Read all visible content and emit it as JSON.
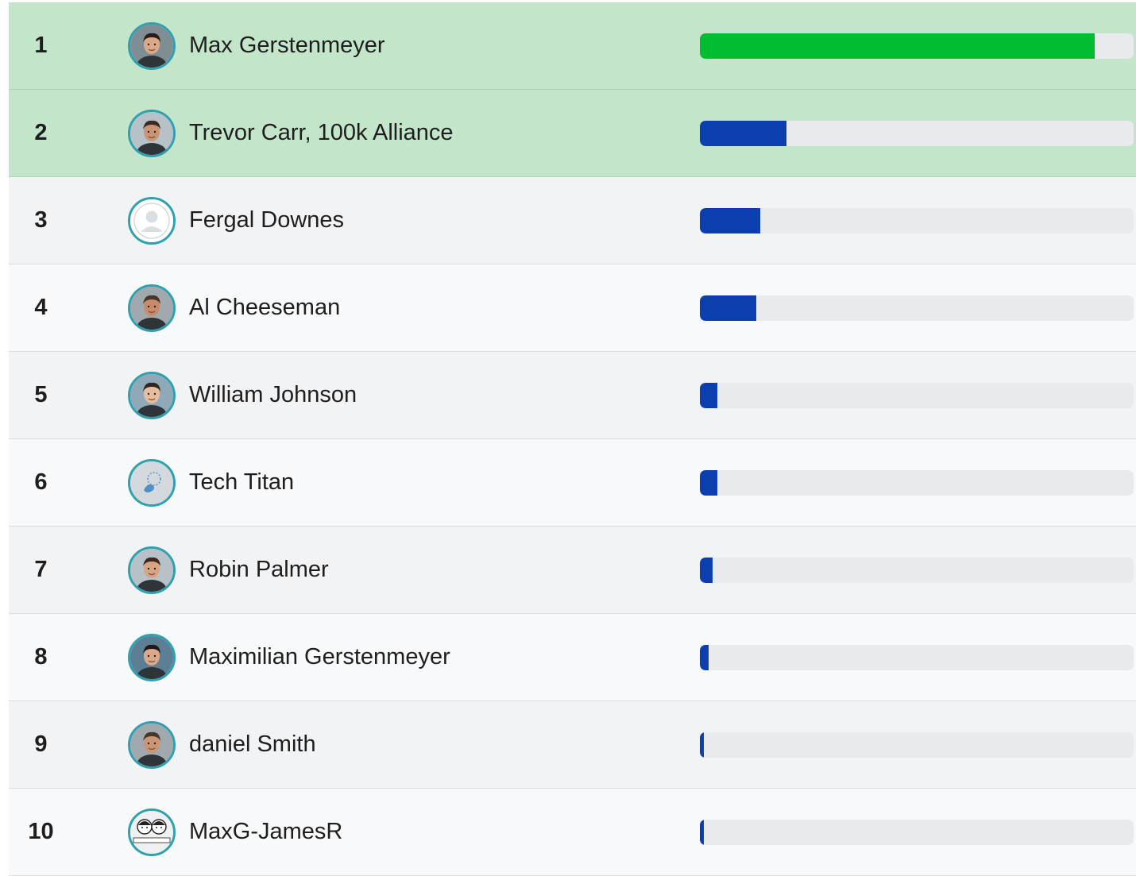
{
  "colors": {
    "first_place_bar": "#00bd32",
    "bar": "#0b3fb0",
    "highlight_row": "#c3e6cb",
    "avatar_ring": "#2fa0ad"
  },
  "leaderboard": {
    "rows": [
      {
        "rank": "1",
        "name": "Max Gerstenmeyer",
        "avatar_icon": "profile-photo",
        "progress": 0.91,
        "highlighted": true
      },
      {
        "rank": "2",
        "name": "Trevor Carr, 100k Alliance",
        "avatar_icon": "profile-photo",
        "progress": 0.2,
        "highlighted": true
      },
      {
        "rank": "3",
        "name": "Fergal Downes",
        "avatar_icon": "default-user-icon",
        "progress": 0.14,
        "highlighted": false
      },
      {
        "rank": "4",
        "name": "Al Cheeseman",
        "avatar_icon": "profile-photo",
        "progress": 0.13,
        "highlighted": false
      },
      {
        "rank": "5",
        "name": "William Johnson",
        "avatar_icon": "profile-photo",
        "progress": 0.04,
        "highlighted": false
      },
      {
        "rank": "6",
        "name": "Tech Titan",
        "avatar_icon": "logo-image",
        "progress": 0.04,
        "highlighted": false
      },
      {
        "rank": "7",
        "name": "Robin Palmer",
        "avatar_icon": "profile-photo",
        "progress": 0.03,
        "highlighted": false
      },
      {
        "rank": "8",
        "name": "Maximilian Gerstenmeyer",
        "avatar_icon": "profile-photo",
        "progress": 0.02,
        "highlighted": false
      },
      {
        "rank": "9",
        "name": "daniel Smith",
        "avatar_icon": "profile-photo",
        "progress": 0.01,
        "highlighted": false
      },
      {
        "rank": "10",
        "name": "MaxG-JamesR",
        "avatar_icon": "cartoon-duo-image",
        "progress": 0.01,
        "highlighted": false
      }
    ]
  }
}
